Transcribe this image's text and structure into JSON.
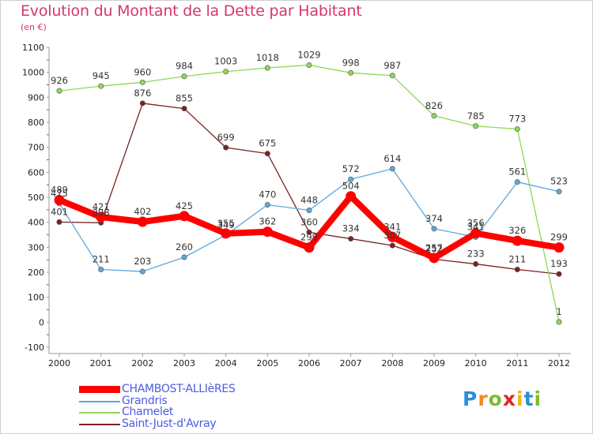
{
  "title": "Evolution du Montant de la Dette par Habitant",
  "subtitle": "(en €)",
  "logo": {
    "letters": [
      "P",
      "r",
      "o",
      "x",
      "i",
      "t",
      "i"
    ],
    "colors": [
      "#2b8fd8",
      "#f08a24",
      "#7dbb2e",
      "#e0252b",
      "#f0b51c",
      "#2b8fd8",
      "#7dbb2e"
    ]
  },
  "legend": [
    {
      "label": "CHAMBOST-ALLIèRES",
      "color": "#ff0000"
    },
    {
      "label": "Grandris",
      "color": "#5da8dc"
    },
    {
      "label": "Chamelet",
      "color": "#8fd65a"
    },
    {
      "label": "Saint-Just-d'Avray",
      "color": "#7b2222"
    }
  ],
  "chart_data": {
    "type": "line",
    "title": "Evolution du Montant de la Dette par Habitant",
    "subtitle": "(en €)",
    "xlabel": "",
    "ylabel": "",
    "x": [
      "2000",
      "2001",
      "2002",
      "2003",
      "2004",
      "2005",
      "2006",
      "2007",
      "2008",
      "2009",
      "2010",
      "2011",
      "2012"
    ],
    "ylim": [
      -100,
      1100
    ],
    "yticks": [
      "-100",
      "0",
      "100",
      "200",
      "300",
      "400",
      "500",
      "600",
      "700",
      "800",
      "900",
      "1000",
      "1100"
    ],
    "grid": false,
    "legend_position": "bottom-left",
    "series": [
      {
        "name": "CHAMBOST-ALLIèRES",
        "color": "#ff0000",
        "values": [
          489,
          421,
          402,
          425,
          355,
          362,
          299,
          504,
          341,
          257,
          356,
          326,
          299
        ]
      },
      {
        "name": "Grandris",
        "color": "#5da8dc",
        "values": [
          475,
          211,
          203,
          260,
          349,
          470,
          448,
          572,
          614,
          374,
          341,
          561,
          523
        ]
      },
      {
        "name": "Chamelet",
        "color": "#8fd65a",
        "values": [
          926,
          945,
          960,
          984,
          1003,
          1018,
          1029,
          998,
          987,
          826,
          785,
          773,
          1
        ]
      },
      {
        "name": "Saint-Just-d'Avray",
        "color": "#7b2222",
        "values": [
          401,
          398,
          876,
          855,
          699,
          675,
          360,
          334,
          307,
          252,
          233,
          211,
          193
        ]
      }
    ]
  }
}
